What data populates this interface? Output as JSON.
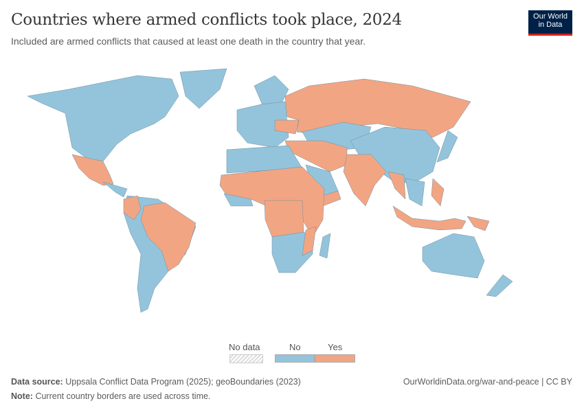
{
  "header": {
    "title": "Countries where armed conflicts took place, 2024",
    "subtitle": "Included are armed conflicts that caused at least one death in the country that year."
  },
  "logo": {
    "text": "Our World in Data",
    "colors": {
      "bg": "#002147",
      "accent": "#ce261e"
    }
  },
  "legend": {
    "no_data": "No data",
    "no": "No",
    "yes": "Yes",
    "colors": {
      "no": "#93c4dc",
      "yes": "#f2a583",
      "no_data": "#e5e5e5"
    }
  },
  "regions": [
    {
      "id": "north-america",
      "status": "no"
    },
    {
      "id": "greenland",
      "status": "no"
    },
    {
      "id": "mexico",
      "status": "yes"
    },
    {
      "id": "central-america",
      "status": "no"
    },
    {
      "id": "south-america",
      "status": "no"
    },
    {
      "id": "brazil",
      "status": "yes"
    },
    {
      "id": "colombia",
      "status": "yes"
    },
    {
      "id": "scandinavia",
      "status": "no"
    },
    {
      "id": "europe",
      "status": "no"
    },
    {
      "id": "ukraine",
      "status": "yes"
    },
    {
      "id": "russia",
      "status": "yes"
    },
    {
      "id": "central-asia",
      "status": "no"
    },
    {
      "id": "china",
      "status": "no"
    },
    {
      "id": "middle-east",
      "status": "yes"
    },
    {
      "id": "saudi-arabia",
      "status": "no"
    },
    {
      "id": "yemen",
      "status": "yes"
    },
    {
      "id": "india",
      "status": "yes"
    },
    {
      "id": "myanmar",
      "status": "yes"
    },
    {
      "id": "mainland-southeast-asia",
      "status": "no"
    },
    {
      "id": "japan",
      "status": "no"
    },
    {
      "id": "philippines",
      "status": "yes"
    },
    {
      "id": "indonesia",
      "status": "yes"
    },
    {
      "id": "papua-new-guinea",
      "status": "yes"
    },
    {
      "id": "australia",
      "status": "no"
    },
    {
      "id": "new-zealand",
      "status": "no"
    },
    {
      "id": "north-africa",
      "status": "no"
    },
    {
      "id": "sahel",
      "status": "yes"
    },
    {
      "id": "west-africa-coast",
      "status": "no"
    },
    {
      "id": "central-africa",
      "status": "yes"
    },
    {
      "id": "southern-africa",
      "status": "no"
    },
    {
      "id": "mozambique",
      "status": "yes"
    },
    {
      "id": "madagascar",
      "status": "no"
    }
  ],
  "footer": {
    "source_label": "Data source:",
    "source": "Uppsala Conflict Data Program (2025); geoBoundaries (2023)",
    "note_label": "Note:",
    "note": "Current country borders are used across time.",
    "url": "OurWorldinData.org/war-and-peace | CC BY"
  }
}
